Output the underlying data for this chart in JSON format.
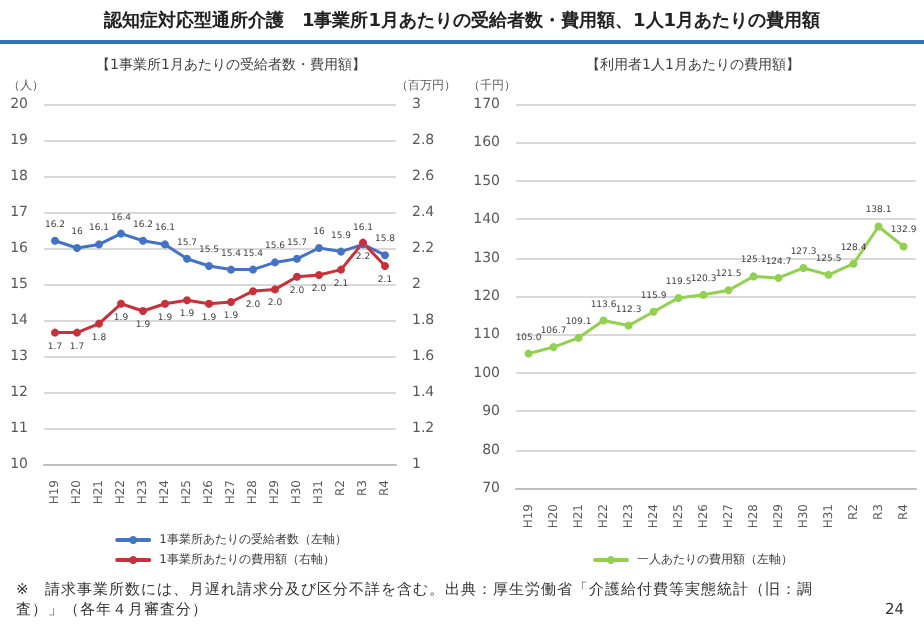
{
  "chart_data": [
    {
      "type": "line",
      "title": "認知症対応型通所介護　1事業所1月あたりの受給者数・費用額、1人1月あたりの費用額",
      "subtitle": "【1事業所1月あたりの受給者数・費用額】",
      "ylabel": "（人）",
      "y2label": "（百万円）",
      "categories": [
        "H19",
        "H20",
        "H21",
        "H22",
        "H23",
        "H24",
        "H25",
        "H26",
        "H27",
        "H28",
        "H29",
        "H30",
        "H31",
        "R2",
        "R3",
        "R4"
      ],
      "series": [
        {
          "name": "1事業所あたりの受給者数（左軸）",
          "color": "#4472c4",
          "values": [
            16.2,
            16,
            16.1,
            16.4,
            16.2,
            16.1,
            15.7,
            15.5,
            15.4,
            15.4,
            15.6,
            15.7,
            16,
            15.9,
            16.1,
            15.8
          ],
          "value_labels": [
            "16.2",
            "16",
            "16.1",
            "16.4",
            "16.2",
            "16.1",
            "15.7",
            "15.5",
            "15.4",
            "15.4",
            "15.6",
            "15.7",
            "16",
            "15.9",
            "16.1",
            "15.8"
          ]
        },
        {
          "name": "1事業所あたりの費用額（右軸）",
          "color": "#c8303a",
          "axis": "y2",
          "values": [
            1.73,
            1.73,
            1.78,
            1.89,
            1.85,
            1.89,
            1.91,
            1.89,
            1.9,
            1.96,
            1.97,
            2.04,
            2.05,
            2.08,
            2.23,
            2.1
          ],
          "value_labels": [
            "1.7",
            "1.7",
            "1.8",
            "1.9",
            "1.9",
            "1.9",
            "1.9",
            "1.9",
            "1.9",
            "2.0",
            "2.0",
            "2.0",
            "2.0",
            "2.1",
            "2.2",
            "2.1"
          ]
        }
      ],
      "ylim": [
        10,
        20
      ],
      "yticks": [
        10,
        11,
        12,
        13,
        14,
        15,
        16,
        17,
        18,
        19,
        20
      ],
      "y2lim": [
        1,
        3
      ],
      "y2ticks": [
        1,
        1.2,
        1.4,
        1.6,
        1.8,
        2,
        2.2,
        2.4,
        2.6,
        2.8,
        3
      ],
      "grid": "y",
      "legend": "bottom",
      "marker": "circle",
      "line_style": "solid",
      "annotations": [
        "※　請求事業所数には、月遅れ請求分及び区分不詳を含む。出典：厚生労働省「介護給付費等実態統計（旧：調査）」（各年４月審査分）"
      ]
    },
    {
      "type": "line",
      "subtitle": "【利用者1人1月あたりの費用額】",
      "ylabel": "（千円）",
      "categories": [
        "H19",
        "H20",
        "H21",
        "H22",
        "H23",
        "H24",
        "H25",
        "H26",
        "H27",
        "H28",
        "H29",
        "H30",
        "H31",
        "R2",
        "R3",
        "R4"
      ],
      "series": [
        {
          "name": "一人あたりの費用額（左軸）",
          "color": "#92d050",
          "values": [
            105.0,
            106.7,
            109.1,
            113.6,
            112.3,
            115.9,
            119.5,
            120.3,
            121.5,
            125.1,
            124.7,
            127.3,
            125.5,
            128.4,
            138.1,
            132.9
          ],
          "value_labels": [
            "105.0",
            "106.7",
            "109.1",
            "113.6",
            "112.3",
            "115.9",
            "119.5",
            "120.3",
            "121.5",
            "125.1",
            "124.7",
            "127.3",
            "125.5",
            "128.4",
            "138.1",
            "132.9"
          ]
        }
      ],
      "ylim": [
        70,
        170
      ],
      "yticks": [
        70,
        80,
        90,
        100,
        110,
        120,
        130,
        140,
        150,
        160,
        170
      ],
      "grid": "y",
      "legend": "bottom",
      "marker": "circle",
      "line_style": "solid",
      "annotations": [
        "24"
      ]
    }
  ]
}
